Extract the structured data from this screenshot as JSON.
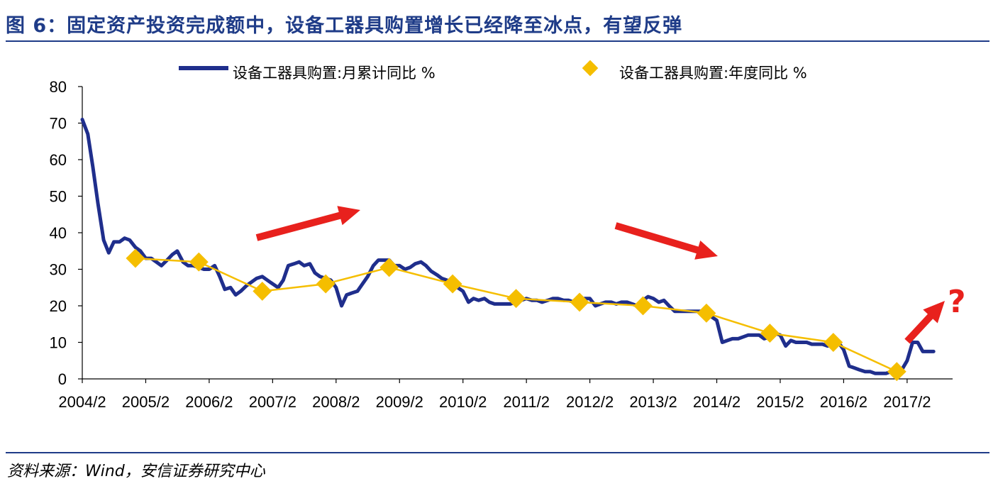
{
  "title": "图 6：固定资产投资完成额中，设备工器具购置增长已经降至冰点，有望反弹",
  "source": "资料来源：Wind，安信证券研究中心",
  "annotation": "?",
  "colors": {
    "title": "#1f3c88",
    "monthly": "#1f2e8c",
    "annual": "#f5be00",
    "arrow": "#e8211d"
  },
  "chart_data": {
    "type": "line",
    "ylim": [
      0,
      80
    ],
    "yticks": [
      0,
      10,
      20,
      30,
      40,
      50,
      60,
      70,
      80
    ],
    "xlim": [
      2004.083,
      2017.8
    ],
    "xticks": [
      "2004/2",
      "2005/2",
      "2006/2",
      "2007/2",
      "2008/2",
      "2009/2",
      "2010/2",
      "2011/2",
      "2012/2",
      "2013/2",
      "2014/2",
      "2015/2",
      "2016/2",
      "2017/2"
    ],
    "legend_placement": "top",
    "series": [
      {
        "name": "设备工器具购置:月累计同比 %",
        "style": "line",
        "points": [
          [
            2004.083,
            71
          ],
          [
            2004.17,
            67
          ],
          [
            2004.25,
            58
          ],
          [
            2004.33,
            48
          ],
          [
            2004.42,
            38
          ],
          [
            2004.5,
            34.5
          ],
          [
            2004.58,
            37.5
          ],
          [
            2004.67,
            37.5
          ],
          [
            2004.75,
            38.5
          ],
          [
            2004.83,
            38
          ],
          [
            2004.92,
            36
          ],
          [
            2005.0,
            35
          ],
          [
            2005.083,
            33
          ],
          [
            2005.17,
            33
          ],
          [
            2005.25,
            32
          ],
          [
            2005.33,
            31
          ],
          [
            2005.42,
            32.5
          ],
          [
            2005.5,
            34
          ],
          [
            2005.58,
            35
          ],
          [
            2005.67,
            32
          ],
          [
            2005.75,
            31
          ],
          [
            2005.83,
            31
          ],
          [
            2005.92,
            30.5
          ],
          [
            2006.0,
            30
          ],
          [
            2006.083,
            30
          ],
          [
            2006.17,
            31
          ],
          [
            2006.25,
            28
          ],
          [
            2006.33,
            24.5
          ],
          [
            2006.42,
            25
          ],
          [
            2006.5,
            23
          ],
          [
            2006.58,
            24
          ],
          [
            2006.67,
            25.5
          ],
          [
            2006.75,
            26.5
          ],
          [
            2006.83,
            27.5
          ],
          [
            2006.92,
            28
          ],
          [
            2007.0,
            27
          ],
          [
            2007.083,
            26
          ],
          [
            2007.17,
            25
          ],
          [
            2007.25,
            27
          ],
          [
            2007.33,
            31
          ],
          [
            2007.42,
            31.5
          ],
          [
            2007.5,
            32
          ],
          [
            2007.58,
            31
          ],
          [
            2007.67,
            31.5
          ],
          [
            2007.75,
            29
          ],
          [
            2007.83,
            28
          ],
          [
            2007.92,
            27.5
          ],
          [
            2008.0,
            27
          ],
          [
            2008.083,
            25
          ],
          [
            2008.17,
            20
          ],
          [
            2008.25,
            23
          ],
          [
            2008.33,
            23.5
          ],
          [
            2008.42,
            24
          ],
          [
            2008.5,
            26
          ],
          [
            2008.58,
            28
          ],
          [
            2008.67,
            31
          ],
          [
            2008.75,
            32.5
          ],
          [
            2008.83,
            32.5
          ],
          [
            2008.92,
            32.5
          ],
          [
            2009.0,
            31
          ],
          [
            2009.083,
            31
          ],
          [
            2009.17,
            30
          ],
          [
            2009.25,
            30.5
          ],
          [
            2009.33,
            31.5
          ],
          [
            2009.42,
            32
          ],
          [
            2009.5,
            31
          ],
          [
            2009.58,
            29.5
          ],
          [
            2009.67,
            28.5
          ],
          [
            2009.75,
            27.5
          ],
          [
            2009.83,
            27
          ],
          [
            2009.92,
            26
          ],
          [
            2010.0,
            25
          ],
          [
            2010.083,
            24
          ],
          [
            2010.17,
            21
          ],
          [
            2010.25,
            22
          ],
          [
            2010.33,
            21.5
          ],
          [
            2010.42,
            22
          ],
          [
            2010.5,
            21
          ],
          [
            2010.58,
            20.5
          ],
          [
            2010.67,
            20.5
          ],
          [
            2010.75,
            20.5
          ],
          [
            2010.83,
            20.5
          ],
          [
            2010.92,
            21
          ],
          [
            2011.0,
            21.5
          ],
          [
            2011.083,
            22
          ],
          [
            2011.17,
            21.5
          ],
          [
            2011.25,
            21.5
          ],
          [
            2011.33,
            21
          ],
          [
            2011.42,
            21.5
          ],
          [
            2011.5,
            22
          ],
          [
            2011.58,
            22
          ],
          [
            2011.67,
            21.5
          ],
          [
            2011.75,
            21.5
          ],
          [
            2011.83,
            21
          ],
          [
            2011.92,
            21.5
          ],
          [
            2012.0,
            22
          ],
          [
            2012.083,
            22
          ],
          [
            2012.17,
            20
          ],
          [
            2012.25,
            20.5
          ],
          [
            2012.33,
            21
          ],
          [
            2012.42,
            21
          ],
          [
            2012.5,
            20.5
          ],
          [
            2012.58,
            21
          ],
          [
            2012.67,
            21
          ],
          [
            2012.75,
            20.5
          ],
          [
            2012.83,
            20
          ],
          [
            2012.92,
            21.5
          ],
          [
            2013.0,
            22.5
          ],
          [
            2013.083,
            22
          ],
          [
            2013.17,
            21
          ],
          [
            2013.25,
            21.5
          ],
          [
            2013.33,
            20
          ],
          [
            2013.42,
            18.5
          ],
          [
            2013.5,
            18.5
          ],
          [
            2013.58,
            18.5
          ],
          [
            2013.67,
            18.5
          ],
          [
            2013.75,
            18.5
          ],
          [
            2013.83,
            18.5
          ],
          [
            2013.92,
            17.5
          ],
          [
            2014.0,
            17
          ],
          [
            2014.083,
            16
          ],
          [
            2014.17,
            10
          ],
          [
            2014.25,
            10.5
          ],
          [
            2014.33,
            11
          ],
          [
            2014.42,
            11
          ],
          [
            2014.5,
            11.5
          ],
          [
            2014.58,
            12
          ],
          [
            2014.67,
            12
          ],
          [
            2014.75,
            12
          ],
          [
            2014.83,
            11
          ],
          [
            2014.92,
            11.5
          ],
          [
            2015.0,
            12.5
          ],
          [
            2015.083,
            12
          ],
          [
            2015.17,
            9
          ],
          [
            2015.25,
            10.5
          ],
          [
            2015.33,
            10
          ],
          [
            2015.42,
            10
          ],
          [
            2015.5,
            10
          ],
          [
            2015.58,
            9.5
          ],
          [
            2015.67,
            9.5
          ],
          [
            2015.75,
            9.5
          ],
          [
            2015.83,
            9
          ],
          [
            2015.92,
            9.5
          ],
          [
            2016.0,
            10
          ],
          [
            2016.083,
            8
          ],
          [
            2016.17,
            3.5
          ],
          [
            2016.25,
            3
          ],
          [
            2016.33,
            2.5
          ],
          [
            2016.42,
            2
          ],
          [
            2016.5,
            2
          ],
          [
            2016.58,
            1.5
          ],
          [
            2016.67,
            1.5
          ],
          [
            2016.75,
            1.5
          ],
          [
            2016.83,
            2
          ],
          [
            2016.92,
            2
          ],
          [
            2017.0,
            2.5
          ],
          [
            2017.083,
            5
          ],
          [
            2017.17,
            10
          ],
          [
            2017.25,
            10
          ],
          [
            2017.33,
            7.5
          ],
          [
            2017.42,
            7.5
          ],
          [
            2017.5,
            7.5
          ]
        ]
      },
      {
        "name": "设备工器具购置:年度同比 %",
        "style": "line-diamond",
        "points": [
          [
            2004.92,
            33
          ],
          [
            2005.92,
            32
          ],
          [
            2006.92,
            24
          ],
          [
            2007.92,
            26
          ],
          [
            2008.92,
            30.5
          ],
          [
            2009.92,
            26
          ],
          [
            2010.92,
            22
          ],
          [
            2011.92,
            21
          ],
          [
            2012.92,
            20
          ],
          [
            2013.92,
            18
          ],
          [
            2014.92,
            12.5
          ],
          [
            2015.92,
            10
          ],
          [
            2016.92,
            2
          ]
        ]
      }
    ]
  }
}
